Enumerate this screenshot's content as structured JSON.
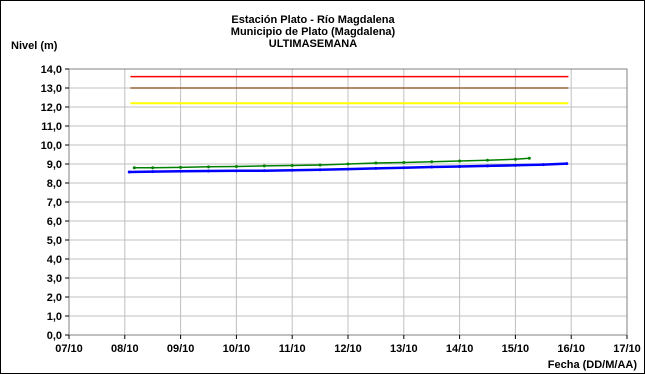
{
  "chart_data": {
    "type": "line",
    "title": "Estación Plato - Río Magdalena",
    "subtitle": "Municipio de Plato (Magdalena)",
    "subtitle2": "ULTIMASEMANA",
    "ylabel": "Nivel (m)",
    "xlabel": "Fecha (DD/M/AA)",
    "ylim": [
      0,
      14
    ],
    "ytick_labels": [
      "0,0",
      "1,0",
      "2,0",
      "3,0",
      "4,0",
      "5,0",
      "6,0",
      "7,0",
      "8,0",
      "9,0",
      "10,0",
      "11,0",
      "12,0",
      "13,0",
      "14,0"
    ],
    "xlim": [
      0,
      10
    ],
    "xtick_labels": [
      "07/10",
      "08/10",
      "09/10",
      "10/10",
      "11/10",
      "12/10",
      "13/10",
      "14/10",
      "15/10",
      "16/10",
      "17/10"
    ],
    "grid": true,
    "colors": {
      "red_line": "#ff0000",
      "brown_line": "#996633",
      "yellow_line": "#ffff00",
      "green_series": "#008000",
      "blue_series": "#0000ff",
      "grid": "#c0c0c0"
    },
    "series": [
      {
        "color": "#ff0000",
        "x": [
          1.1,
          8.95
        ],
        "y": [
          13.6,
          13.6
        ],
        "markers": false,
        "width": 1.5
      },
      {
        "color": "#996633",
        "x": [
          1.1,
          8.95
        ],
        "y": [
          13.0,
          13.0
        ],
        "markers": false,
        "width": 1.5
      },
      {
        "color": "#ffff00",
        "x": [
          1.1,
          8.95
        ],
        "y": [
          12.2,
          12.2
        ],
        "markers": false,
        "width": 2
      },
      {
        "color": "#008000",
        "markers": true,
        "width": 1.5,
        "x": [
          1.17,
          1.5,
          2.0,
          2.5,
          3.0,
          3.5,
          4.0,
          4.5,
          5.0,
          5.5,
          6.0,
          6.5,
          7.0,
          7.5,
          8.0,
          8.25
        ],
        "y": [
          8.8,
          8.8,
          8.82,
          8.85,
          8.87,
          8.9,
          8.92,
          8.95,
          9.0,
          9.05,
          9.08,
          9.12,
          9.16,
          9.2,
          9.25,
          9.3
        ]
      },
      {
        "color": "#0000ff",
        "markers": true,
        "width": 2.5,
        "x": [
          1.08,
          1.5,
          2.0,
          2.5,
          3.0,
          3.5,
          4.0,
          4.5,
          5.0,
          5.5,
          6.0,
          6.5,
          7.0,
          7.5,
          8.0,
          8.5,
          8.92
        ],
        "y": [
          8.58,
          8.6,
          8.62,
          8.63,
          8.64,
          8.65,
          8.67,
          8.7,
          8.73,
          8.77,
          8.8,
          8.84,
          8.87,
          8.9,
          8.93,
          8.97,
          9.02
        ]
      }
    ]
  }
}
